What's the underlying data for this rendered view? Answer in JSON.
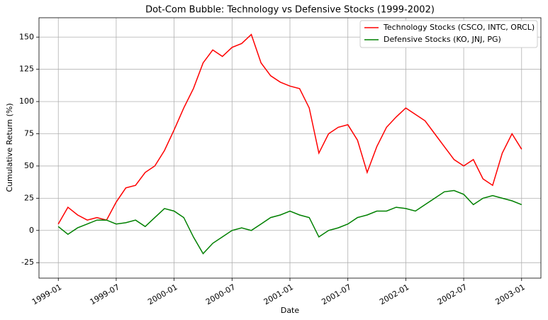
{
  "chart_data": {
    "type": "line",
    "title": "Dot-Com Bubble: Technology vs Defensive Stocks (1999-2002)",
    "xlabel": "Date",
    "ylabel": "Cumulative Return (%)",
    "x": [
      "1999-01",
      "1999-02",
      "1999-03",
      "1999-04",
      "1999-05",
      "1999-06",
      "1999-07",
      "1999-08",
      "1999-09",
      "1999-10",
      "1999-11",
      "1999-12",
      "2000-01",
      "2000-02",
      "2000-03",
      "2000-04",
      "2000-05",
      "2000-06",
      "2000-07",
      "2000-08",
      "2000-09",
      "2000-10",
      "2000-11",
      "2000-12",
      "2001-01",
      "2001-02",
      "2001-03",
      "2001-04",
      "2001-05",
      "2001-06",
      "2001-07",
      "2001-08",
      "2001-09",
      "2001-10",
      "2001-11",
      "2001-12",
      "2002-01",
      "2002-02",
      "2002-03",
      "2002-04",
      "2002-05",
      "2002-06",
      "2002-07",
      "2002-08",
      "2002-09",
      "2002-10",
      "2002-11",
      "2002-12",
      "2003-01"
    ],
    "series": [
      {
        "name": "Technology Stocks (CSCO, INTC, ORCL)",
        "color": "#ff0000",
        "values": [
          5,
          18,
          12,
          8,
          10,
          8,
          22,
          33,
          35,
          45,
          50,
          62,
          78,
          95,
          110,
          130,
          140,
          135,
          142,
          145,
          152,
          130,
          120,
          115,
          112,
          110,
          95,
          60,
          75,
          80,
          82,
          70,
          45,
          65,
          80,
          88,
          95,
          90,
          85,
          75,
          65,
          55,
          50,
          55,
          40,
          35,
          60,
          75,
          63
        ]
      },
      {
        "name": "Defensive Stocks (KO, JNJ, PG)",
        "color": "#008000",
        "values": [
          3,
          -3,
          2,
          5,
          8,
          8,
          5,
          6,
          8,
          3,
          10,
          17,
          15,
          10,
          -5,
          -18,
          -10,
          -5,
          0,
          2,
          0,
          5,
          10,
          12,
          15,
          12,
          10,
          -5,
          0,
          2,
          5,
          10,
          12,
          15,
          15,
          18,
          17,
          15,
          20,
          25,
          30,
          31,
          28,
          20,
          25,
          27,
          25,
          23,
          20
        ]
      }
    ],
    "xlim": [
      "1998-11",
      "2003-03"
    ],
    "xticks": [
      "1999-01",
      "1999-07",
      "2000-01",
      "2000-07",
      "2001-01",
      "2001-07",
      "2002-01",
      "2002-07",
      "2003-01"
    ],
    "ylim": [
      -37,
      165
    ],
    "yticks": [
      -25,
      0,
      25,
      50,
      75,
      100,
      125,
      150
    ],
    "grid": true,
    "legend": "upper right"
  }
}
